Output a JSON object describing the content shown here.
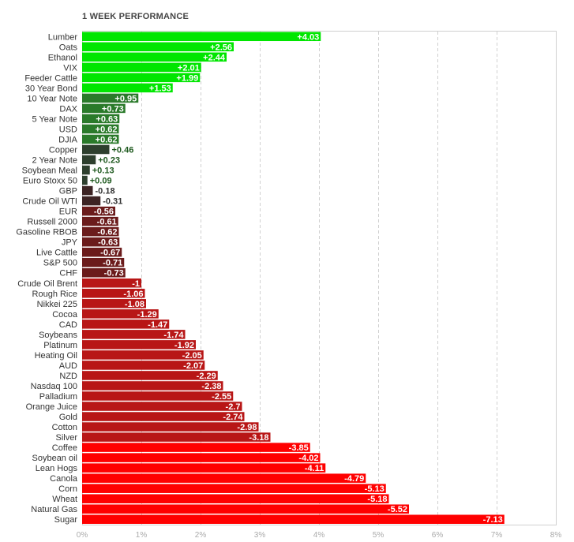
{
  "chart_data": {
    "type": "bar",
    "orientation": "horizontal",
    "title": "1 WEEK PERFORMANCE",
    "xlabel": "",
    "ylabel": "",
    "xlim": [
      0,
      8
    ],
    "x_ticks": [
      "0%",
      "1%",
      "2%",
      "3%",
      "4%",
      "5%",
      "6%",
      "7%",
      "8%"
    ],
    "grid": true,
    "legend": "none",
    "bar_magnitude": "absolute value of change",
    "categories": [
      "Lumber",
      "Oats",
      "Ethanol",
      "VIX",
      "Feeder Cattle",
      "30 Year Bond",
      "10 Year Note",
      "DAX",
      "5 Year Note",
      "USD",
      "DJIA",
      "Copper",
      "2 Year Note",
      "Soybean Meal",
      "Euro Stoxx 50",
      "GBP",
      "Crude Oil WTI",
      "EUR",
      "Russell 2000",
      "Gasoline RBOB",
      "JPY",
      "Live Cattle",
      "S&P 500",
      "CHF",
      "Crude Oil Brent",
      "Rough Rice",
      "Nikkei 225",
      "Cocoa",
      "CAD",
      "Soybeans",
      "Platinum",
      "Heating Oil",
      "AUD",
      "NZD",
      "Nasdaq 100",
      "Palladium",
      "Orange Juice",
      "Gold",
      "Cotton",
      "Silver",
      "Coffee",
      "Soybean oil",
      "Lean Hogs",
      "Canola",
      "Corn",
      "Wheat",
      "Natural Gas",
      "Sugar"
    ],
    "values": [
      4.03,
      2.56,
      2.44,
      2.01,
      1.99,
      1.53,
      0.95,
      0.73,
      0.63,
      0.62,
      0.62,
      0.46,
      0.23,
      0.13,
      0.09,
      -0.18,
      -0.31,
      -0.56,
      -0.61,
      -0.62,
      -0.63,
      -0.67,
      -0.71,
      -0.73,
      -1,
      -1.06,
      -1.08,
      -1.29,
      -1.47,
      -1.74,
      -1.92,
      -2.05,
      -2.07,
      -2.29,
      -2.38,
      -2.55,
      -2.7,
      -2.74,
      -2.98,
      -3.18,
      -3.85,
      -4.02,
      -4.11,
      -4.79,
      -5.13,
      -5.18,
      -5.52,
      -7.13
    ],
    "value_labels": [
      "+4.03",
      "+2.56",
      "+2.44",
      "+2.01",
      "+1.99",
      "+1.53",
      "+0.95",
      "+0.73",
      "+0.63",
      "+0.62",
      "+0.62",
      "+0.46",
      "+0.23",
      "+0.13",
      "+0.09",
      "-0.18",
      "-0.31",
      "-0.56",
      "-0.61",
      "-0.62",
      "-0.63",
      "-0.67",
      "-0.71",
      "-0.73",
      "-1",
      "-1.06",
      "-1.08",
      "-1.29",
      "-1.47",
      "-1.74",
      "-1.92",
      "-2.05",
      "-2.07",
      "-2.29",
      "-2.38",
      "-2.55",
      "-2.7",
      "-2.74",
      "-2.98",
      "-3.18",
      "-3.85",
      "-4.02",
      "-4.11",
      "-4.79",
      "-5.13",
      "-5.18",
      "-5.52",
      "-7.13"
    ],
    "colors": {
      "strong_positive": "#00e600",
      "positive": "#1fc41f",
      "mild_positive": "#2a7a2a",
      "weak_positive": "#2e3f2e",
      "weak_negative": "#3d2424",
      "mild_negative": "#6b1b1b",
      "negative": "#b81616",
      "strong_negative": "#ff0000",
      "grid": "#d0d0d0",
      "axis_text": "#aaaaaa"
    }
  }
}
